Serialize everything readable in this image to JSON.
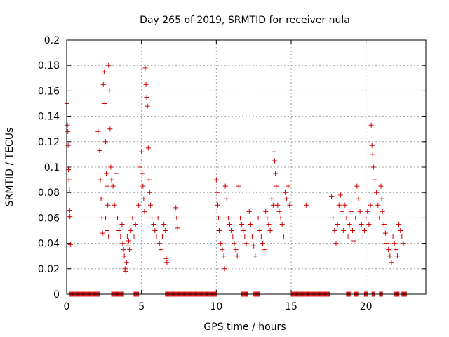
{
  "chart_data": {
    "type": "scatter",
    "title": "Day 265 of 2019, SRMTID for receiver nula",
    "xlabel": "GPS time / hours",
    "ylabel": "SRMTID / TECUs",
    "xlim": [
      0,
      24
    ],
    "ylim": [
      0,
      0.2
    ],
    "grid": true,
    "marker": "+",
    "colors": {
      "series": "#d40000",
      "grid": "#a0a0a0",
      "axis": "#000000"
    },
    "x_ticks": [
      {
        "value": 0,
        "label": "0"
      },
      {
        "value": 5,
        "label": "5"
      },
      {
        "value": 10,
        "label": "10"
      },
      {
        "value": 15,
        "label": "15"
      },
      {
        "value": 20,
        "label": "20"
      }
    ],
    "y_ticks": [
      {
        "value": 0,
        "label": "0"
      },
      {
        "value": 0.02,
        "label": "0.02"
      },
      {
        "value": 0.04,
        "label": "0.04"
      },
      {
        "value": 0.06,
        "label": "0.06"
      },
      {
        "value": 0.08,
        "label": "0.08"
      },
      {
        "value": 0.1,
        "label": "0.1"
      },
      {
        "value": 0.12,
        "label": "0.12"
      },
      {
        "value": 0.14,
        "label": "0.14"
      },
      {
        "value": 0.16,
        "label": "0.16"
      },
      {
        "value": 0.18,
        "label": "0.18"
      },
      {
        "value": 0.2,
        "label": "0.2"
      }
    ],
    "series": [
      {
        "name": "SRMTID",
        "points": [
          [
            0.02,
            0.15
          ],
          [
            0.05,
            0.133
          ],
          [
            0.08,
            0.128
          ],
          [
            0.1,
            0.117
          ],
          [
            0.12,
            0.098
          ],
          [
            0.15,
            0.09
          ],
          [
            0.18,
            0.082
          ],
          [
            0.2,
            0.066
          ],
          [
            0.22,
            0.061
          ],
          [
            0.25,
            0.039
          ],
          [
            2.1,
            0.128
          ],
          [
            2.2,
            0.113
          ],
          [
            2.25,
            0.09
          ],
          [
            2.3,
            0.075
          ],
          [
            2.35,
            0.06
          ],
          [
            2.4,
            0.048
          ],
          [
            2.45,
            0.165
          ],
          [
            2.5,
            0.175
          ],
          [
            2.55,
            0.15
          ],
          [
            2.6,
            0.12
          ],
          [
            2.65,
            0.095
          ],
          [
            2.7,
            0.085
          ],
          [
            2.75,
            0.07
          ],
          [
            2.8,
            0.18
          ],
          [
            2.85,
            0.16
          ],
          [
            2.9,
            0.13
          ],
          [
            2.95,
            0.1
          ],
          [
            3.0,
            0.09
          ],
          [
            2.6,
            0.06
          ],
          [
            2.7,
            0.05
          ],
          [
            2.8,
            0.045
          ],
          [
            3.1,
            0.085
          ],
          [
            3.2,
            0.07
          ],
          [
            3.3,
            0.095
          ],
          [
            3.4,
            0.06
          ],
          [
            3.5,
            0.05
          ],
          [
            3.6,
            0.045
          ],
          [
            3.7,
            0.055
          ],
          [
            3.75,
            0.04
          ],
          [
            3.8,
            0.035
          ],
          [
            3.85,
            0.03
          ],
          [
            3.9,
            0.02
          ],
          [
            3.95,
            0.018
          ],
          [
            4.0,
            0.025
          ],
          [
            4.05,
            0.045
          ],
          [
            4.1,
            0.038
          ],
          [
            4.15,
            0.042
          ],
          [
            4.2,
            0.035
          ],
          [
            4.3,
            0.05
          ],
          [
            4.4,
            0.06
          ],
          [
            4.5,
            0.045
          ],
          [
            4.6,
            0.055
          ],
          [
            4.8,
            0.07
          ],
          [
            4.9,
            0.1
          ],
          [
            5.0,
            0.112
          ],
          [
            5.05,
            0.095
          ],
          [
            5.1,
            0.085
          ],
          [
            5.15,
            0.075
          ],
          [
            5.2,
            0.065
          ],
          [
            5.25,
            0.178
          ],
          [
            5.3,
            0.165
          ],
          [
            5.35,
            0.155
          ],
          [
            5.4,
            0.148
          ],
          [
            5.45,
            0.115
          ],
          [
            5.5,
            0.09
          ],
          [
            5.55,
            0.08
          ],
          [
            5.6,
            0.07
          ],
          [
            5.7,
            0.06
          ],
          [
            5.8,
            0.055
          ],
          [
            5.9,
            0.05
          ],
          [
            6.0,
            0.045
          ],
          [
            6.1,
            0.06
          ],
          [
            6.2,
            0.04
          ],
          [
            6.3,
            0.035
          ],
          [
            6.4,
            0.045
          ],
          [
            6.5,
            0.055
          ],
          [
            6.6,
            0.05
          ],
          [
            6.65,
            0.028
          ],
          [
            6.7,
            0.025
          ],
          [
            7.3,
            0.068
          ],
          [
            7.35,
            0.06
          ],
          [
            7.4,
            0.052
          ],
          [
            10.0,
            0.09
          ],
          [
            10.05,
            0.08
          ],
          [
            10.1,
            0.07
          ],
          [
            10.15,
            0.06
          ],
          [
            10.2,
            0.05
          ],
          [
            10.3,
            0.04
          ],
          [
            10.4,
            0.035
          ],
          [
            10.5,
            0.03
          ],
          [
            10.55,
            0.02
          ],
          [
            10.6,
            0.085
          ],
          [
            10.7,
            0.075
          ],
          [
            10.8,
            0.06
          ],
          [
            10.9,
            0.055
          ],
          [
            11.0,
            0.05
          ],
          [
            11.1,
            0.045
          ],
          [
            11.2,
            0.04
          ],
          [
            11.3,
            0.035
          ],
          [
            11.4,
            0.03
          ],
          [
            11.5,
            0.085
          ],
          [
            11.6,
            0.06
          ],
          [
            11.7,
            0.055
          ],
          [
            11.8,
            0.05
          ],
          [
            11.9,
            0.045
          ],
          [
            12.0,
            0.04
          ],
          [
            12.2,
            0.065
          ],
          [
            12.3,
            0.055
          ],
          [
            12.4,
            0.045
          ],
          [
            12.5,
            0.038
          ],
          [
            12.6,
            0.03
          ],
          [
            12.8,
            0.06
          ],
          [
            12.9,
            0.05
          ],
          [
            13.0,
            0.045
          ],
          [
            13.1,
            0.04
          ],
          [
            13.2,
            0.035
          ],
          [
            13.3,
            0.065
          ],
          [
            13.4,
            0.06
          ],
          [
            13.5,
            0.055
          ],
          [
            13.6,
            0.05
          ],
          [
            13.7,
            0.075
          ],
          [
            13.8,
            0.07
          ],
          [
            13.85,
            0.112
          ],
          [
            13.9,
            0.105
          ],
          [
            13.95,
            0.095
          ],
          [
            14.0,
            0.085
          ],
          [
            14.1,
            0.07
          ],
          [
            14.2,
            0.065
          ],
          [
            14.3,
            0.06
          ],
          [
            14.4,
            0.055
          ],
          [
            14.5,
            0.045
          ],
          [
            14.6,
            0.08
          ],
          [
            14.7,
            0.075
          ],
          [
            14.8,
            0.085
          ],
          [
            14.9,
            0.07
          ],
          [
            16.0,
            0.07
          ],
          [
            17.7,
            0.077
          ],
          [
            17.8,
            0.06
          ],
          [
            17.9,
            0.05
          ],
          [
            18.0,
            0.04
          ],
          [
            18.1,
            0.055
          ],
          [
            18.2,
            0.07
          ],
          [
            18.3,
            0.078
          ],
          [
            18.4,
            0.065
          ],
          [
            18.5,
            0.05
          ],
          [
            18.6,
            0.07
          ],
          [
            18.7,
            0.06
          ],
          [
            18.8,
            0.045
          ],
          [
            18.9,
            0.055
          ],
          [
            19.0,
            0.065
          ],
          [
            19.1,
            0.05
          ],
          [
            19.2,
            0.042
          ],
          [
            19.3,
            0.06
          ],
          [
            19.4,
            0.085
          ],
          [
            19.5,
            0.075
          ],
          [
            19.6,
            0.065
          ],
          [
            19.7,
            0.055
          ],
          [
            19.8,
            0.045
          ],
          [
            19.9,
            0.05
          ],
          [
            20.0,
            0.06
          ],
          [
            20.1,
            0.065
          ],
          [
            20.2,
            0.055
          ],
          [
            20.3,
            0.07
          ],
          [
            20.35,
            0.133
          ],
          [
            20.4,
            0.117
          ],
          [
            20.45,
            0.11
          ],
          [
            20.5,
            0.1
          ],
          [
            20.6,
            0.09
          ],
          [
            20.7,
            0.08
          ],
          [
            20.8,
            0.07
          ],
          [
            20.9,
            0.06
          ],
          [
            21.0,
            0.085
          ],
          [
            21.05,
            0.075
          ],
          [
            21.1,
            0.065
          ],
          [
            21.2,
            0.055
          ],
          [
            21.3,
            0.048
          ],
          [
            21.4,
            0.04
          ],
          [
            21.5,
            0.035
          ],
          [
            21.6,
            0.03
          ],
          [
            21.7,
            0.025
          ],
          [
            21.8,
            0.045
          ],
          [
            21.9,
            0.04
          ],
          [
            22.0,
            0.035
          ],
          [
            22.1,
            0.03
          ],
          [
            22.2,
            0.055
          ],
          [
            22.3,
            0.05
          ],
          [
            22.4,
            0.045
          ],
          [
            22.5,
            0.04
          ]
        ]
      }
    ],
    "zero_runs": [
      [
        0.2,
        2.2
      ],
      [
        3.0,
        3.8
      ],
      [
        4.5,
        4.8
      ],
      [
        6.6,
        10.0
      ],
      [
        11.7,
        12.1
      ],
      [
        12.5,
        12.9
      ],
      [
        15.0,
        17.6
      ],
      [
        18.7,
        19.0
      ],
      [
        19.2,
        19.5
      ],
      [
        19.9,
        20.1
      ],
      [
        20.4,
        20.6
      ],
      [
        20.9,
        21.1
      ],
      [
        21.9,
        22.2
      ],
      [
        22.4,
        22.7
      ]
    ]
  }
}
